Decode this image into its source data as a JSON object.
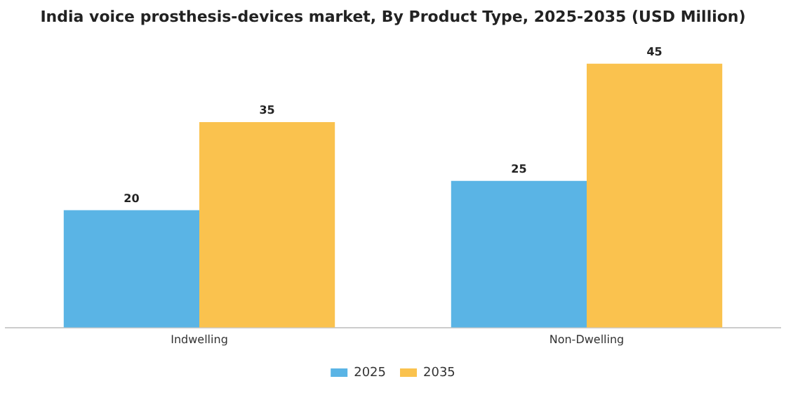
{
  "chart_data": {
    "type": "bar",
    "title": "India voice prosthesis-devices market, By Product Type, 2025-2035 (USD Million)",
    "categories": [
      "Indwelling",
      "Non-Dwelling"
    ],
    "series": [
      {
        "name": "2025",
        "color": "#5ab4e5",
        "values": [
          20,
          25
        ]
      },
      {
        "name": "2035",
        "color": "#fac24e",
        "values": [
          35,
          45
        ]
      }
    ],
    "data_labels": true,
    "legend": "bottom",
    "grid": false
  }
}
